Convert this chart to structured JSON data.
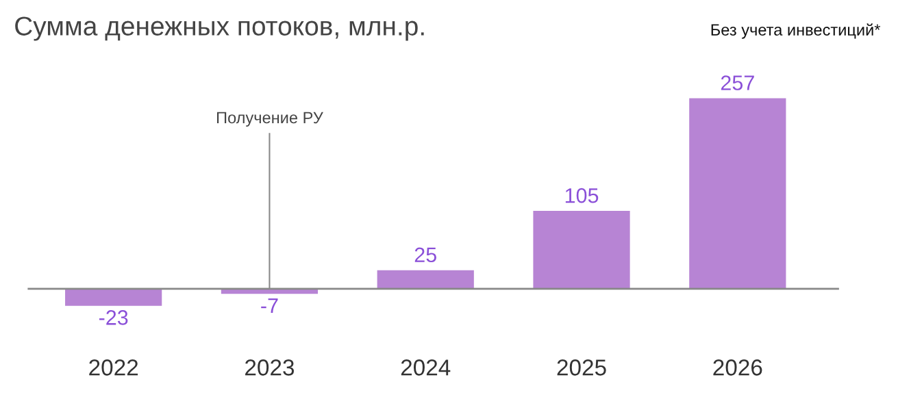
{
  "chart_data": {
    "type": "bar",
    "title": "Сумма денежных потоков, млн.р.",
    "subtitle": "Без учета инвестиций*",
    "categories": [
      "2022",
      "2023",
      "2024",
      "2025",
      "2026"
    ],
    "values": [
      -23,
      -7,
      25,
      105,
      257
    ],
    "color": "#b784d4",
    "data_labels": true,
    "ref_lines": [
      {
        "axis": "x",
        "value": "2023",
        "label": "Получение РУ",
        "color": "#888888"
      }
    ]
  }
}
